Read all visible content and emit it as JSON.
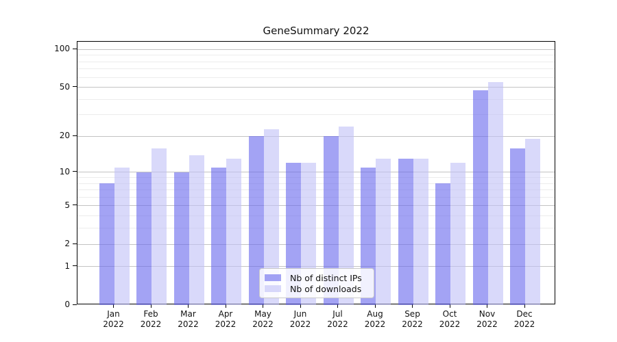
{
  "chart_data": {
    "type": "bar",
    "title": "GeneSummary 2022",
    "categories": [
      "Jan 2022",
      "Feb 2022",
      "Mar 2022",
      "Apr 2022",
      "May 2022",
      "Jun 2022",
      "Jul 2022",
      "Aug 2022",
      "Sep 2022",
      "Oct 2022",
      "Nov 2022",
      "Dec 2022"
    ],
    "months": [
      "Jan",
      "Feb",
      "Mar",
      "Apr",
      "May",
      "Jun",
      "Jul",
      "Aug",
      "Sep",
      "Oct",
      "Nov",
      "Dec"
    ],
    "year": "2022",
    "series": [
      {
        "name": "Nb of distinct IPs",
        "color": "rgba(102,102,237,0.6)",
        "solid_hex": "#a3a3f3",
        "values": [
          8,
          10,
          10,
          11,
          20,
          12,
          20,
          11,
          13,
          8,
          47,
          16
        ]
      },
      {
        "name": "Nb of downloads",
        "color": "rgba(192,192,247,0.6)",
        "solid_hex": "#d9d9f9",
        "values": [
          11,
          16,
          14,
          13,
          23,
          12,
          24,
          13,
          13,
          12,
          55,
          19
        ]
      }
    ],
    "xlabel": "",
    "ylabel": "",
    "yscale": "log1p",
    "ylim": [
      0,
      115
    ],
    "y_major_ticks": [
      0,
      1,
      2,
      5,
      10,
      20,
      50,
      100
    ],
    "y_minor_ticks": [
      3,
      4,
      6,
      7,
      8,
      9,
      30,
      40,
      60,
      70,
      80,
      90
    ],
    "grid": "horizontal",
    "legend_position": "inside lower center-right"
  },
  "y_axis": {
    "tick_labels": [
      "100",
      "50",
      "20",
      "10",
      "5",
      "2",
      "1",
      "0"
    ]
  },
  "colors": {
    "grid_major": "#c3c3c3",
    "grid_minor": "#ececec",
    "axis_spine": "#000000",
    "background": "#ffffff"
  }
}
